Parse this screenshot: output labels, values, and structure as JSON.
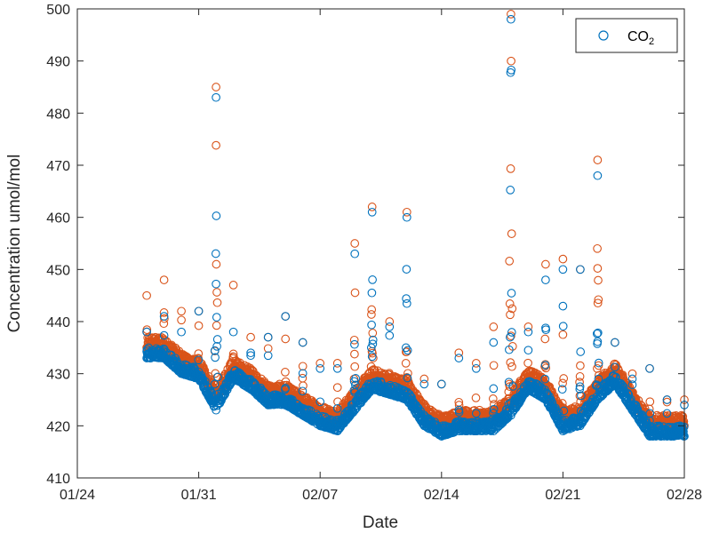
{
  "chart_data": {
    "type": "scatter",
    "title": "",
    "xlabel": "Date",
    "ylabel": "Concentration umol/mol",
    "x_axis_kind": "date",
    "x_ticks": [
      "01/24",
      "01/31",
      "02/07",
      "02/14",
      "02/21",
      "02/28"
    ],
    "y_ticks": [
      "410",
      "420",
      "430",
      "440",
      "450",
      "460",
      "470",
      "480",
      "490",
      "500"
    ],
    "xlim": [
      "2017-01-24",
      "2017-02-28"
    ],
    "ylim": [
      410,
      500
    ],
    "grid": false,
    "legend_position": "top-right",
    "series": [
      {
        "name": "CO2",
        "legend_label": "CO",
        "legend_subscript": "2",
        "color": "#0072BD",
        "marker": "open-circle",
        "x": [
          "2017-01-28",
          "2017-01-29",
          "2017-01-30",
          "2017-01-31",
          "2017-02-01",
          "2017-02-02",
          "2017-02-03",
          "2017-02-04",
          "2017-02-05",
          "2017-02-06",
          "2017-02-07",
          "2017-02-08",
          "2017-02-09",
          "2017-02-10",
          "2017-02-11",
          "2017-02-12",
          "2017-02-13",
          "2017-02-14",
          "2017-02-15",
          "2017-02-16",
          "2017-02-17",
          "2017-02-18",
          "2017-02-19",
          "2017-02-20",
          "2017-02-21",
          "2017-02-22",
          "2017-02-23",
          "2017-02-24",
          "2017-02-25",
          "2017-02-26",
          "2017-02-27",
          "2017-02-28"
        ],
        "y": [
          433,
          433,
          430,
          429,
          423,
          429,
          427,
          424,
          424,
          422,
          420,
          419,
          423,
          427,
          426,
          425,
          420,
          418,
          419,
          419,
          419,
          422,
          427,
          425,
          419,
          420,
          425,
          428,
          423,
          418,
          418,
          418
        ],
        "y_max": [
          438,
          441,
          438,
          442,
          483,
          438,
          434,
          437,
          441,
          436,
          431,
          431,
          453,
          461,
          439,
          460,
          428,
          428,
          433,
          431,
          436,
          498,
          438,
          448,
          450,
          450,
          468,
          436,
          429,
          431,
          425,
          424
        ]
      },
      {
        "name": "",
        "color": "#D95319",
        "marker": "open-circle",
        "x": [
          "2017-01-28",
          "2017-01-29",
          "2017-01-30",
          "2017-01-31",
          "2017-02-01",
          "2017-02-02",
          "2017-02-03",
          "2017-02-04",
          "2017-02-05",
          "2017-02-06",
          "2017-02-07",
          "2017-02-08",
          "2017-02-09",
          "2017-02-10",
          "2017-02-11",
          "2017-02-12",
          "2017-02-13",
          "2017-02-14",
          "2017-02-15",
          "2017-02-16",
          "2017-02-17",
          "2017-02-18",
          "2017-02-19",
          "2017-02-20",
          "2017-02-21",
          "2017-02-22",
          "2017-02-23",
          "2017-02-24",
          "2017-02-25",
          "2017-02-26",
          "2017-02-27",
          "2017-02-28"
        ],
        "y": [
          435,
          435,
          432,
          431,
          425,
          431,
          429,
          426,
          426,
          424,
          422,
          421,
          425,
          429,
          428,
          427,
          422,
          420,
          421,
          421,
          421,
          424,
          429,
          427,
          421,
          422,
          427,
          430,
          425,
          420,
          420,
          420
        ],
        "y_max": [
          445,
          448,
          442,
          442,
          485,
          447,
          437,
          437,
          441,
          436,
          432,
          432,
          455,
          462,
          440,
          461,
          429,
          428,
          434,
          432,
          439,
          499,
          439,
          451,
          452,
          450,
          471,
          436,
          430,
          431,
          425,
          425
        ]
      }
    ]
  }
}
